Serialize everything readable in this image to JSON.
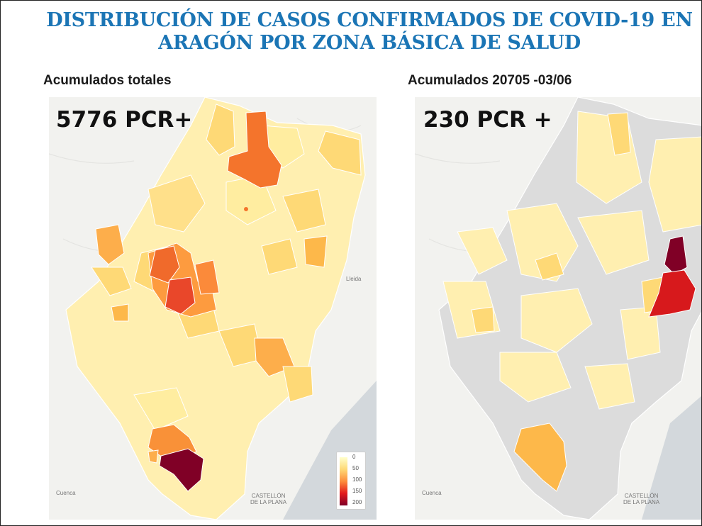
{
  "title": {
    "line1": "DISTRIBUCIÓN DE CASOS CONFIRMADOS DE COVID-19 EN",
    "line2": "ARAGÓN POR ZONA BÁSICA DE SALUD"
  },
  "panels": [
    {
      "subtitle": "Acumulados totales",
      "count": "5776 PCR+"
    },
    {
      "subtitle": "Acumulados 20705 -03/06",
      "count": "230 PCR +"
    }
  ],
  "legend": {
    "ticks": [
      "0",
      "50",
      "100",
      "150",
      "200"
    ]
  },
  "map_labels": {
    "castellon": "CASTELLÓN\nDE LA PLANA",
    "cuenca": "Cuenca",
    "lleida": "Lleida"
  },
  "colors": {
    "title": "#1b75b5",
    "scale": [
      "#ffffcc",
      "#fed976",
      "#fd8d3c",
      "#e31a1c",
      "#800026"
    ],
    "inactive_zone": "#dcdcdc",
    "sea": "#d3d8dc"
  }
}
